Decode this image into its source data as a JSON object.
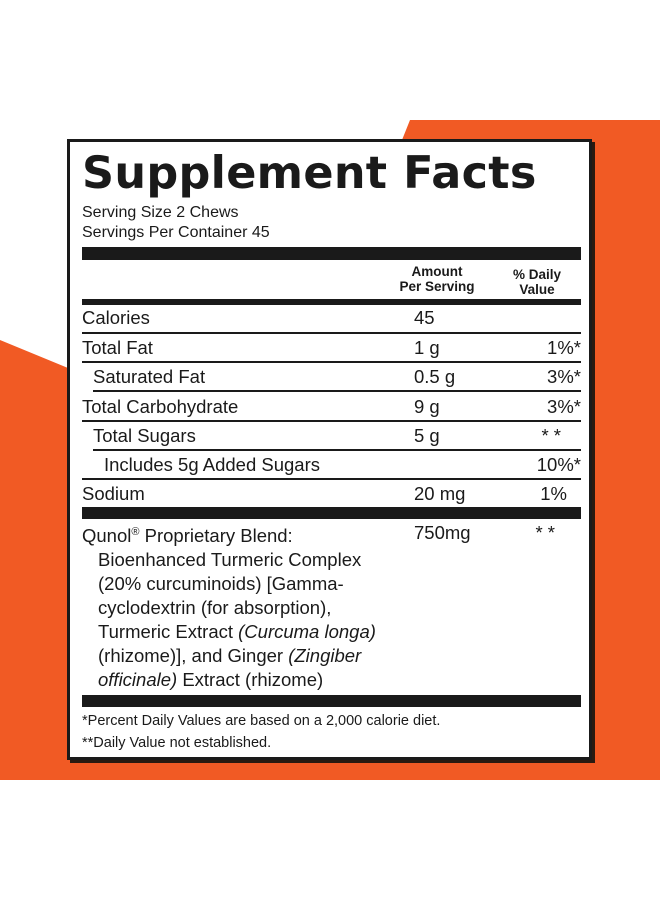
{
  "colors": {
    "accent": "#f15a24",
    "ink": "#1a1a1a"
  },
  "title": "Supplement Facts",
  "serving_size": "Serving Size 2 Chews",
  "servings_per_container": "Servings Per Container 45",
  "header": {
    "amount_line1": "Amount",
    "amount_line2": "Per Serving",
    "dv_line1": "% Daily",
    "dv_line2": "Value"
  },
  "rows": [
    {
      "label": "Calories",
      "amount": "45",
      "dv": ""
    },
    {
      "label": "Total Fat",
      "amount": "1 g",
      "dv": "1%*"
    },
    {
      "label": "Saturated Fat",
      "amount": "0.5 g",
      "dv": "3%*"
    },
    {
      "label": "Total Carbohydrate",
      "amount": "9 g",
      "dv": "3%*"
    },
    {
      "label": "Total Sugars",
      "amount": "5 g",
      "dv": "* *"
    },
    {
      "label": "Includes 5g Added Sugars",
      "amount": "",
      "dv": "10%*"
    },
    {
      "label": "Sodium",
      "amount": "20 mg",
      "dv": "1%"
    }
  ],
  "blend": {
    "name": "Qunol",
    "reg": "®",
    "name_rest": " Proprietary Blend:",
    "amount": "750mg",
    "dv": "* *",
    "l1": "Bioenhanced Turmeric Complex",
    "l2": "(20% curcuminoids) [Gamma-",
    "l3": "cyclodextrin (for absorption),",
    "l4a": "Turmeric Extract ",
    "l4b": "(Curcuma longa)",
    "l5a": "(rhizome)], and Ginger ",
    "l5b": "(Zingiber",
    "l6a": "officinale)",
    "l6b": " Extract (rhizome)"
  },
  "footnotes": [
    "*Percent Daily Values are based on a 2,000 calorie diet.",
    "**Daily Value not established."
  ]
}
